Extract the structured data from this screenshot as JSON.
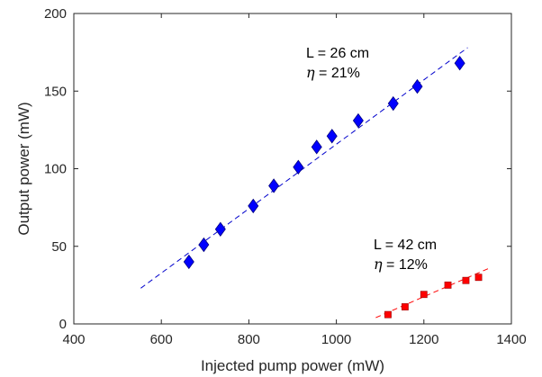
{
  "chart_data": {
    "type": "scatter",
    "xlabel": "Injected pump power (mW)",
    "ylabel": "Output power (mW)",
    "xlim": [
      400,
      1400
    ],
    "ylim": [
      0,
      200
    ],
    "xticks": [
      400,
      600,
      800,
      1000,
      1200,
      1400
    ],
    "yticks": [
      0,
      50,
      100,
      150,
      200
    ],
    "grid": false,
    "series": [
      {
        "marker": "diamond",
        "color": "#0000ff",
        "points": [
          [
            663,
            40
          ],
          [
            697,
            51
          ],
          [
            735,
            61
          ],
          [
            810,
            76
          ],
          [
            857,
            89
          ],
          [
            913,
            101
          ],
          [
            955,
            114
          ],
          [
            990,
            121
          ],
          [
            1050,
            131
          ],
          [
            1130,
            142
          ],
          [
            1185,
            153
          ],
          [
            1282,
            168
          ]
        ],
        "fit": {
          "color": "#0000cc",
          "from": [
            553,
            23
          ],
          "to": [
            1300,
            178
          ]
        }
      },
      {
        "marker": "square",
        "color": "#ff0000",
        "points": [
          [
            1118,
            6
          ],
          [
            1157,
            11
          ],
          [
            1200,
            19
          ],
          [
            1255,
            25
          ],
          [
            1296,
            28
          ],
          [
            1325,
            30
          ]
        ],
        "fit": {
          "color": "#ff0000",
          "from": [
            1090,
            4
          ],
          "to": [
            1350,
            36
          ]
        }
      }
    ],
    "annotations": [
      {
        "series": 0,
        "line1": "L = 26 cm",
        "eta_symbol": "η",
        "eta_text": " = 21%"
      },
      {
        "series": 1,
        "line1": "L = 42 cm",
        "eta_symbol": "η",
        "eta_text": " = 12%"
      }
    ]
  }
}
